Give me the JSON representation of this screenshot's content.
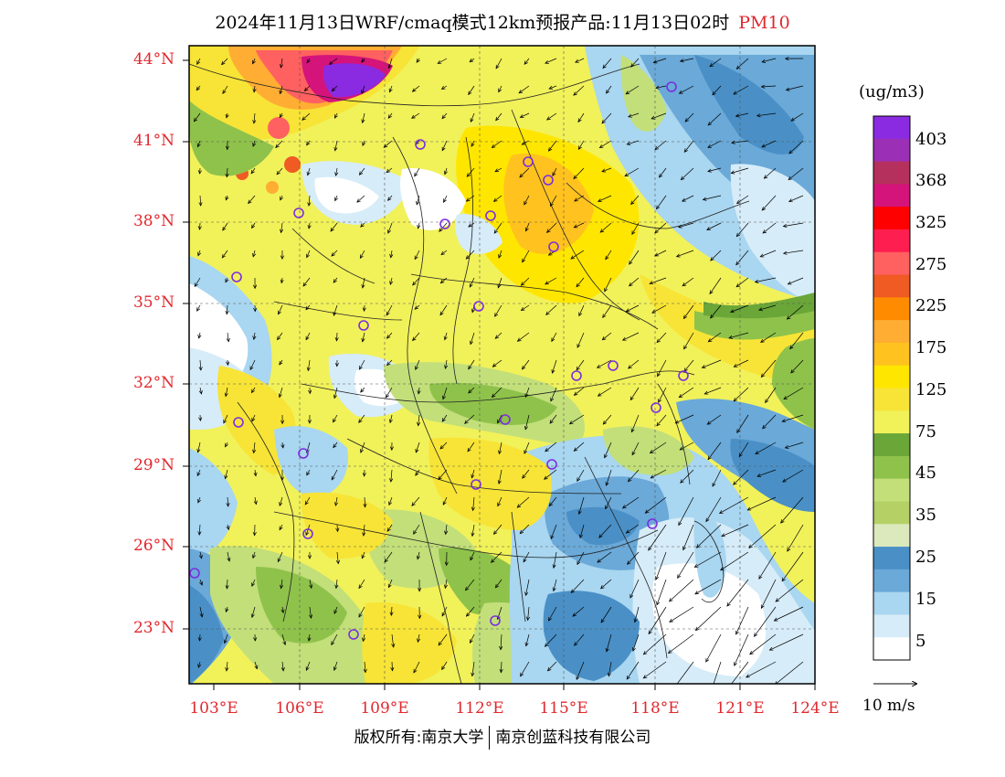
{
  "title": "2024年11月13日WRF/cmaq模式12km预报产品:11月13日02时",
  "pollutant": "PM10",
  "unit": "(ug/m3)",
  "lat_labels": [
    "44°N",
    "41°N",
    "38°N",
    "35°N",
    "32°N",
    "29°N",
    "26°N",
    "23°N"
  ],
  "lon_labels": [
    "103°E",
    "106°E",
    "109°E",
    "112°E",
    "115°E",
    "118°E",
    "121°E",
    "124°E"
  ],
  "colorbar": {
    "labels": [
      "403",
      "368",
      "325",
      "275",
      "225",
      "175",
      "125",
      "75",
      "45",
      "35",
      "25",
      "15",
      "5"
    ],
    "colors": [
      "#8a2be2",
      "#9b30b6",
      "#b5305c",
      "#d4147a",
      "#ff0000",
      "#ff1e50",
      "#ff6060",
      "#f05a23",
      "#ff8c00",
      "#ffad33",
      "#ffc21f",
      "#ffe600",
      "#f7e436",
      "#f1f15a",
      "#6aa638",
      "#8fc24b",
      "#c2df7a",
      "#b5d166",
      "#dce9bd",
      "#4a90c6",
      "#6aa9d8",
      "#a9d6f0",
      "#d6ecf8",
      "#ffffff"
    ]
  },
  "vector_label": "10 m/s",
  "copyright": {
    "left": "版权所有:南京大学",
    "right": "南京创蓝科技有限公司"
  },
  "colors": {
    "label_red": "#e0282e",
    "city_marker": "#7b2ee0"
  }
}
